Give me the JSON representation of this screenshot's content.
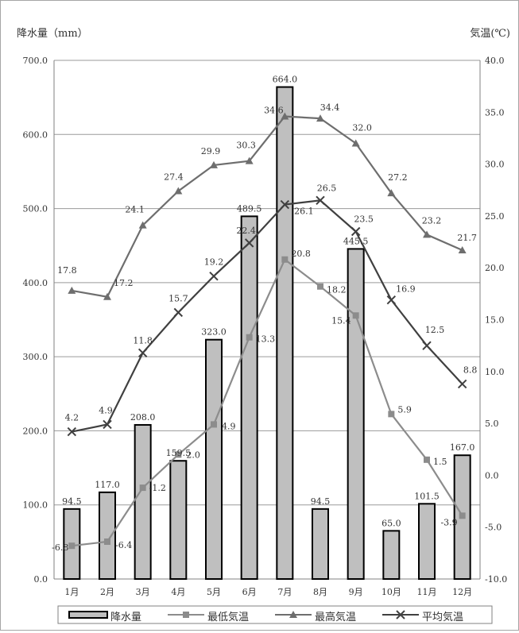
{
  "chart_data": {
    "type": "bar+line",
    "left_axis_title": "降水量（mm）",
    "right_axis_title": "気温(℃)",
    "categories": [
      "1月",
      "2月",
      "3月",
      "4月",
      "5月",
      "6月",
      "7月",
      "8月",
      "9月",
      "10月",
      "11月",
      "12月"
    ],
    "left_ylim": [
      0,
      700
    ],
    "left_ticks": [
      "0.0",
      "100.0",
      "200.0",
      "300.0",
      "400.0",
      "500.0",
      "600.0",
      "700.0"
    ],
    "right_ylim": [
      -10,
      40
    ],
    "right_ticks": [
      "-10.0",
      "-5.0",
      "0.0",
      "5.0",
      "10.0",
      "15.0",
      "20.0",
      "25.0",
      "30.0",
      "35.0",
      "40.0"
    ],
    "grid": true,
    "legend_position": "bottom",
    "series": [
      {
        "name": "降水量",
        "type": "bar",
        "axis": "left",
        "color": "#bfbfbf",
        "values": [
          94.5,
          117.0,
          208.0,
          159.5,
          323.0,
          489.5,
          664.0,
          94.5,
          445.5,
          65.0,
          101.5,
          167.0
        ],
        "labels": [
          "94.5",
          "117.0",
          "208.0",
          "159.5",
          "323.0",
          "489.5",
          "664.0",
          "94.5",
          "445.5",
          "65.0",
          "101.5",
          "167.0"
        ]
      },
      {
        "name": "最低気温",
        "type": "line",
        "axis": "right",
        "marker": "square",
        "color": "#8c8c8c",
        "values": [
          -6.8,
          -6.4,
          -1.2,
          2.0,
          4.9,
          13.3,
          20.8,
          18.2,
          15.4,
          5.9,
          1.5,
          -3.9
        ],
        "labels": [
          "-6.8",
          "-6.4",
          "-1.2",
          "2.0",
          "4.9",
          "13.3",
          "20.8",
          "18.2",
          "15.4",
          "5.9",
          "1.5",
          "-3.9"
        ]
      },
      {
        "name": "最高気温",
        "type": "line",
        "axis": "right",
        "marker": "triangle",
        "color": "#6e6e6e",
        "values": [
          17.8,
          17.2,
          24.1,
          27.4,
          29.9,
          30.3,
          34.6,
          34.4,
          32.0,
          27.2,
          23.2,
          21.7
        ],
        "labels": [
          "17.8",
          "17.2",
          "24.1",
          "27.4",
          "29.9",
          "30.3",
          "34.6",
          "34.4",
          "32.0",
          "27.2",
          "23.2",
          "21.7"
        ]
      },
      {
        "name": "平均気温",
        "type": "line",
        "axis": "right",
        "marker": "x",
        "color": "#404040",
        "values": [
          4.2,
          4.9,
          11.8,
          15.7,
          19.2,
          22.4,
          26.1,
          26.5,
          23.5,
          16.9,
          12.5,
          8.8
        ],
        "labels": [
          "4.2",
          "4.9",
          "11.8",
          "15.7",
          "19.2",
          "22.4",
          "26.1",
          "26.5",
          "23.5",
          "16.9",
          "12.5",
          "8.8"
        ]
      }
    ]
  }
}
